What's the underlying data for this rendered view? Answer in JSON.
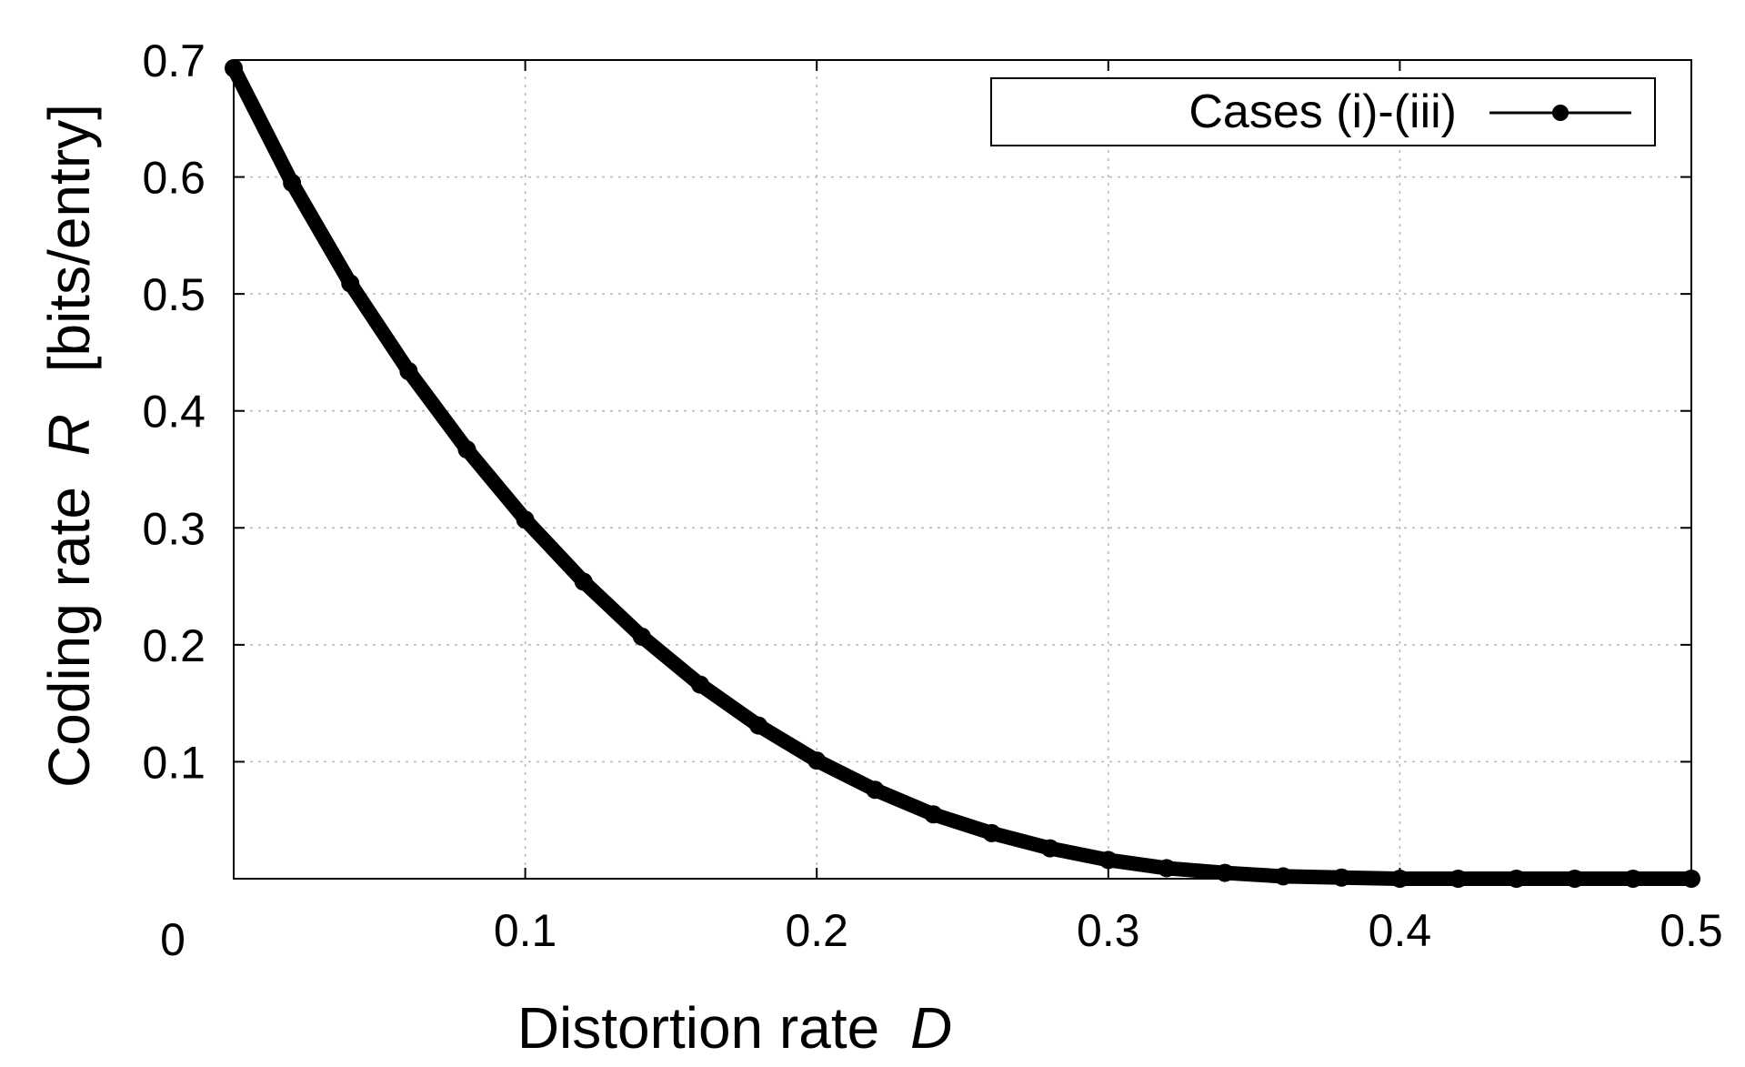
{
  "chart_data": {
    "type": "line",
    "title": "",
    "xlabel": "Distortion rate",
    "xlabel_var": "D",
    "ylabel": "Coding rate",
    "ylabel_var": "R",
    "ylabel_unit": "[bits/entry]",
    "xlim": [
      0,
      0.5
    ],
    "ylim": [
      0,
      0.7
    ],
    "x_ticks": [
      0,
      0.1,
      0.2,
      0.3,
      0.4,
      0.5
    ],
    "x_tick_labels": [
      "0",
      "0.1",
      "0.2",
      "0.3",
      "0.4",
      "0.5"
    ],
    "y_ticks": [
      0.1,
      0.2,
      0.3,
      0.4,
      0.5,
      0.6,
      0.7
    ],
    "y_tick_labels": [
      "0.1",
      "0.2",
      "0.3",
      "0.4",
      "0.5",
      "0.6",
      "0.7"
    ],
    "grid": true,
    "legend_position": "top-right",
    "series": [
      {
        "name": "Cases (i)-(iii)",
        "color": "#000000",
        "marker": "filled-circle",
        "x": [
          0.0,
          0.02,
          0.04,
          0.06,
          0.08,
          0.1,
          0.12,
          0.14,
          0.16,
          0.18,
          0.2,
          0.22,
          0.24,
          0.26,
          0.28,
          0.3,
          0.32,
          0.34,
          0.36,
          0.38,
          0.4,
          0.42,
          0.44,
          0.46,
          0.48,
          0.5
        ],
        "y": [
          0.693,
          0.595,
          0.509,
          0.434,
          0.367,
          0.307,
          0.254,
          0.207,
          0.166,
          0.131,
          0.101,
          0.076,
          0.055,
          0.039,
          0.026,
          0.016,
          0.009,
          0.005,
          0.002,
          0.001,
          0.0,
          0.0,
          0.0,
          0.0,
          0.0,
          0.0
        ]
      }
    ]
  }
}
